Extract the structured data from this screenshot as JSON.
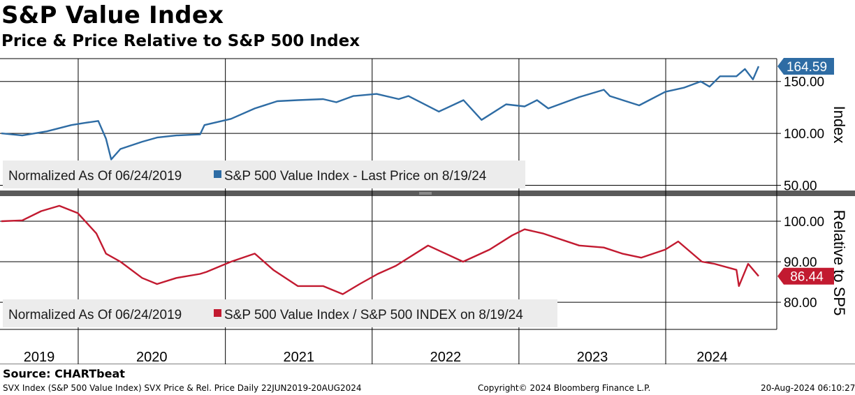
{
  "header": {
    "title": "S&P Value Index",
    "subtitle": "Price & Price Relative to S&P 500 Index"
  },
  "chart_data": [
    {
      "type": "line",
      "panel": "top",
      "y_axis_label": "Index",
      "y_ticks": [
        "150.00",
        "100.00",
        "50.00"
      ],
      "y_tick_values": [
        150,
        100,
        50
      ],
      "ylim": [
        45,
        172
      ],
      "legend_prefix": "Normalized As Of 06/24/2019",
      "series": [
        {
          "name": "S&P 500 Value Index - Last Price on 8/19/24",
          "color": "#2e6ca4",
          "last_value_label": "164.59",
          "x": [
            "2019-06-24",
            "2019-08-15",
            "2019-10-15",
            "2019-12-15",
            "2020-01-15",
            "2020-02-20",
            "2020-03-10",
            "2020-03-23",
            "2020-04-15",
            "2020-06-08",
            "2020-07-15",
            "2020-09-01",
            "2020-10-30",
            "2020-11-10",
            "2021-01-15",
            "2021-03-15",
            "2021-05-10",
            "2021-06-30",
            "2021-09-01",
            "2021-10-04",
            "2021-11-15",
            "2022-01-12",
            "2022-03-08",
            "2022-04-01",
            "2022-06-16",
            "2022-08-16",
            "2022-09-30",
            "2022-11-30",
            "2023-01-15",
            "2023-02-15",
            "2023-03-15",
            "2023-05-31",
            "2023-07-31",
            "2023-08-15",
            "2023-10-27",
            "2023-12-31",
            "2024-02-15",
            "2024-03-28",
            "2024-04-19",
            "2024-05-15",
            "2024-06-25",
            "2024-07-16",
            "2024-08-05",
            "2024-08-19"
          ],
          "values": [
            100,
            98,
            102,
            108,
            110,
            112,
            95,
            75,
            85,
            92,
            96,
            98,
            99,
            108,
            114,
            124,
            131,
            132,
            133,
            130,
            136,
            138,
            133,
            136,
            121,
            132,
            113,
            128,
            126,
            132,
            124,
            135,
            142,
            136,
            127,
            140,
            144,
            150,
            145,
            155,
            155,
            162,
            152,
            164.59
          ]
        }
      ]
    },
    {
      "type": "line",
      "panel": "bottom",
      "y_axis_label": "Relative to SP5",
      "y_ticks": [
        "100.00",
        "90.00",
        "80.00"
      ],
      "y_tick_values": [
        100,
        90,
        80
      ],
      "ylim": [
        73.3,
        106.2
      ],
      "x_tick_labels": [
        "2019",
        "2020",
        "2021",
        "2022",
        "2023",
        "2024"
      ],
      "legend_prefix": "Normalized As Of 06/24/2019",
      "series": [
        {
          "name": "S&P 500 Value Index / S&P 500 INDEX on 8/19/24",
          "color": "#c21a30",
          "last_value_label": "86.44",
          "x": [
            "2019-06-24",
            "2019-08-15",
            "2019-10-01",
            "2019-11-15",
            "2019-12-31",
            "2020-02-15",
            "2020-03-10",
            "2020-04-15",
            "2020-06-08",
            "2020-07-15",
            "2020-09-01",
            "2020-10-30",
            "2020-11-15",
            "2021-01-15",
            "2021-03-15",
            "2021-04-30",
            "2021-06-30",
            "2021-09-01",
            "2021-10-20",
            "2021-12-01",
            "2022-01-15",
            "2022-03-01",
            "2022-05-20",
            "2022-08-15",
            "2022-10-20",
            "2022-12-15",
            "2023-01-15",
            "2023-03-01",
            "2023-05-31",
            "2023-07-31",
            "2023-09-15",
            "2023-11-01",
            "2023-12-31",
            "2024-02-01",
            "2024-03-31",
            "2024-05-01",
            "2024-06-25",
            "2024-07-01",
            "2024-07-24",
            "2024-08-19"
          ],
          "values": [
            100,
            100.2,
            102.5,
            103.8,
            102,
            97,
            92,
            90,
            86,
            84.5,
            86,
            87,
            87.5,
            90,
            92,
            88,
            84,
            84,
            82,
            84.5,
            87,
            89,
            94,
            90,
            93,
            96.5,
            98,
            97,
            94,
            93.5,
            92,
            91,
            93,
            95,
            90,
            89.5,
            88,
            84,
            89.5,
            86.44
          ]
        }
      ]
    }
  ],
  "footer": {
    "source": "Source: CHARTbeat",
    "description": "SVX Index (S&P 500 Value Index) SVX Price & Rel. Price  Daily 22JUN2019-20AUG2024",
    "copyright": "Copyright© 2024 Bloomberg Finance L.P.",
    "timestamp": "20-Aug-2024 06:10:27"
  }
}
